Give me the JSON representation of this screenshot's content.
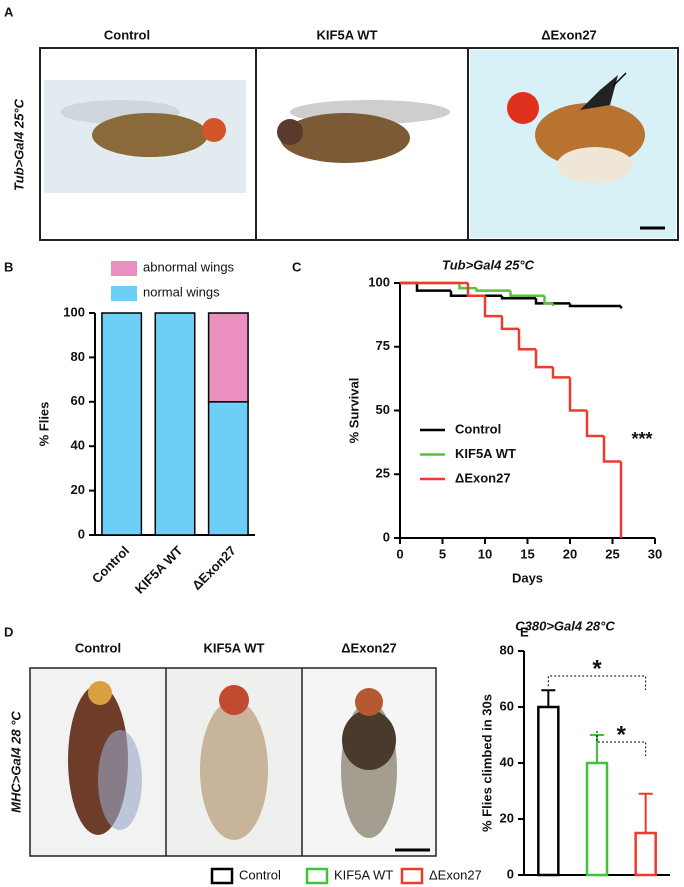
{
  "panels": {
    "A": {
      "label": "A",
      "genotype": "Tub>Gal4 25°C",
      "columns": [
        "Control",
        "KIF5A WT",
        "ΔExon27"
      ]
    },
    "D": {
      "label": "D",
      "genotype": "MHC>Gal4 28 °C",
      "columns": [
        "Control",
        "KIF5A WT",
        "ΔExon27"
      ]
    }
  },
  "chart_data": [
    {
      "panel_label": "B",
      "type": "bar",
      "stacked": true,
      "categories": [
        "Control",
        "KIF5A WT",
        "ΔExon27"
      ],
      "series": [
        {
          "name": "normal wings",
          "color": "#6dcff6",
          "values": [
            100,
            100,
            60
          ]
        },
        {
          "name": "abnormal wings",
          "color": "#ea8fc0",
          "values": [
            0,
            0,
            40
          ]
        }
      ],
      "ylabel": "% Flies",
      "ylim": [
        0,
        100
      ],
      "yticks": [
        0,
        20,
        40,
        60,
        80,
        100
      ]
    },
    {
      "panel_label": "C",
      "type": "step",
      "title": "Tub>Gal4 25°C",
      "xlabel": "Days",
      "ylabel": "% Survival",
      "xlim": [
        0,
        30
      ],
      "xticks": [
        0,
        5,
        10,
        15,
        20,
        25,
        30
      ],
      "ylim": [
        0,
        100
      ],
      "yticks": [
        0,
        25,
        50,
        75,
        100
      ],
      "series": [
        {
          "name": "Control",
          "color": "#000000",
          "x": [
            0,
            2,
            6,
            12,
            16,
            20,
            26
          ],
          "values": [
            100,
            97,
            95,
            94,
            92,
            91,
            90
          ]
        },
        {
          "name": "KIF5A WT",
          "color": "#5bbf3f",
          "x": [
            0,
            7,
            9,
            13,
            17,
            18
          ],
          "values": [
            100,
            98,
            97,
            95,
            92,
            91
          ]
        },
        {
          "name": "ΔExon27",
          "color": "#ee3a2c",
          "x": [
            0,
            8,
            10,
            12,
            14,
            16,
            18,
            20,
            22,
            24,
            26
          ],
          "values": [
            100,
            95,
            87,
            82,
            74,
            67,
            63,
            50,
            40,
            30,
            0
          ]
        }
      ],
      "annotation": "***"
    },
    {
      "panel_label": "E",
      "type": "bar",
      "title": "C380>Gal4 28°C",
      "ylabel": "% Flies climbed in 30s",
      "ylim": [
        0,
        80
      ],
      "yticks": [
        0,
        20,
        40,
        60,
        80
      ],
      "series": [
        {
          "name": "Control",
          "color": "#000000",
          "values": [
            60
          ],
          "errors": [
            6
          ]
        },
        {
          "name": "KIF5A WT",
          "color": "#3ec33a",
          "values": [
            40
          ],
          "errors": [
            10
          ]
        },
        {
          "name": "ΔExon27",
          "color": "#ee3a2c",
          "values": [
            15
          ],
          "errors": [
            14
          ]
        }
      ],
      "annotations": [
        "*",
        "*"
      ]
    }
  ]
}
